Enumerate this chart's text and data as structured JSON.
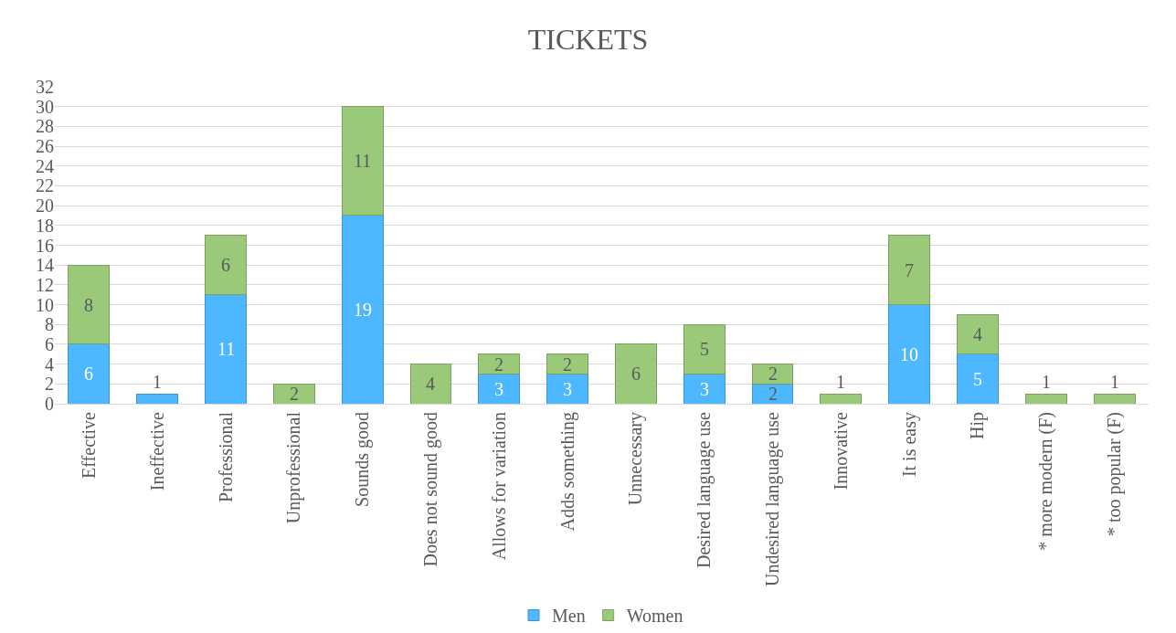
{
  "chart_data": {
    "type": "bar",
    "title": "TICKETS",
    "stacked": true,
    "grid": "y",
    "legend": "bottom",
    "categories": [
      "Effective",
      "Ineffective",
      "Professional",
      "Unprofessional",
      "Sounds good",
      "Does not sound good",
      "Allows for variation",
      "Adds something",
      "Unnecessary",
      "Desired language use",
      "Undesired language use",
      "Innovative",
      "It is easy",
      "Hip",
      "* more modern (F)",
      "* too popular (F)"
    ],
    "ylim": [
      0,
      32
    ],
    "yticks": [
      0,
      2,
      4,
      6,
      8,
      10,
      12,
      14,
      16,
      18,
      20,
      22,
      24,
      26,
      28,
      30,
      32
    ],
    "series": [
      {
        "name": "Men",
        "color": "#4db8ff",
        "values": [
          6,
          1,
          11,
          0,
          19,
          0,
          3,
          3,
          0,
          3,
          2,
          0,
          10,
          5,
          0,
          0
        ],
        "value_labels": [
          "6",
          "1",
          "11",
          null,
          "19",
          null,
          "3",
          "3",
          null,
          "3",
          "2",
          null,
          "10",
          "5",
          null,
          null
        ]
      },
      {
        "name": "Women",
        "color": "#9bc97a",
        "values": [
          8,
          0,
          6,
          2,
          11,
          4,
          2,
          2,
          6,
          5,
          2,
          1,
          7,
          4,
          1,
          1
        ],
        "value_labels": [
          "8",
          null,
          "6",
          "2",
          "11",
          "4",
          "2",
          "2",
          "6",
          "5",
          "2",
          "1",
          "7",
          "4",
          "1",
          "1"
        ]
      }
    ]
  }
}
